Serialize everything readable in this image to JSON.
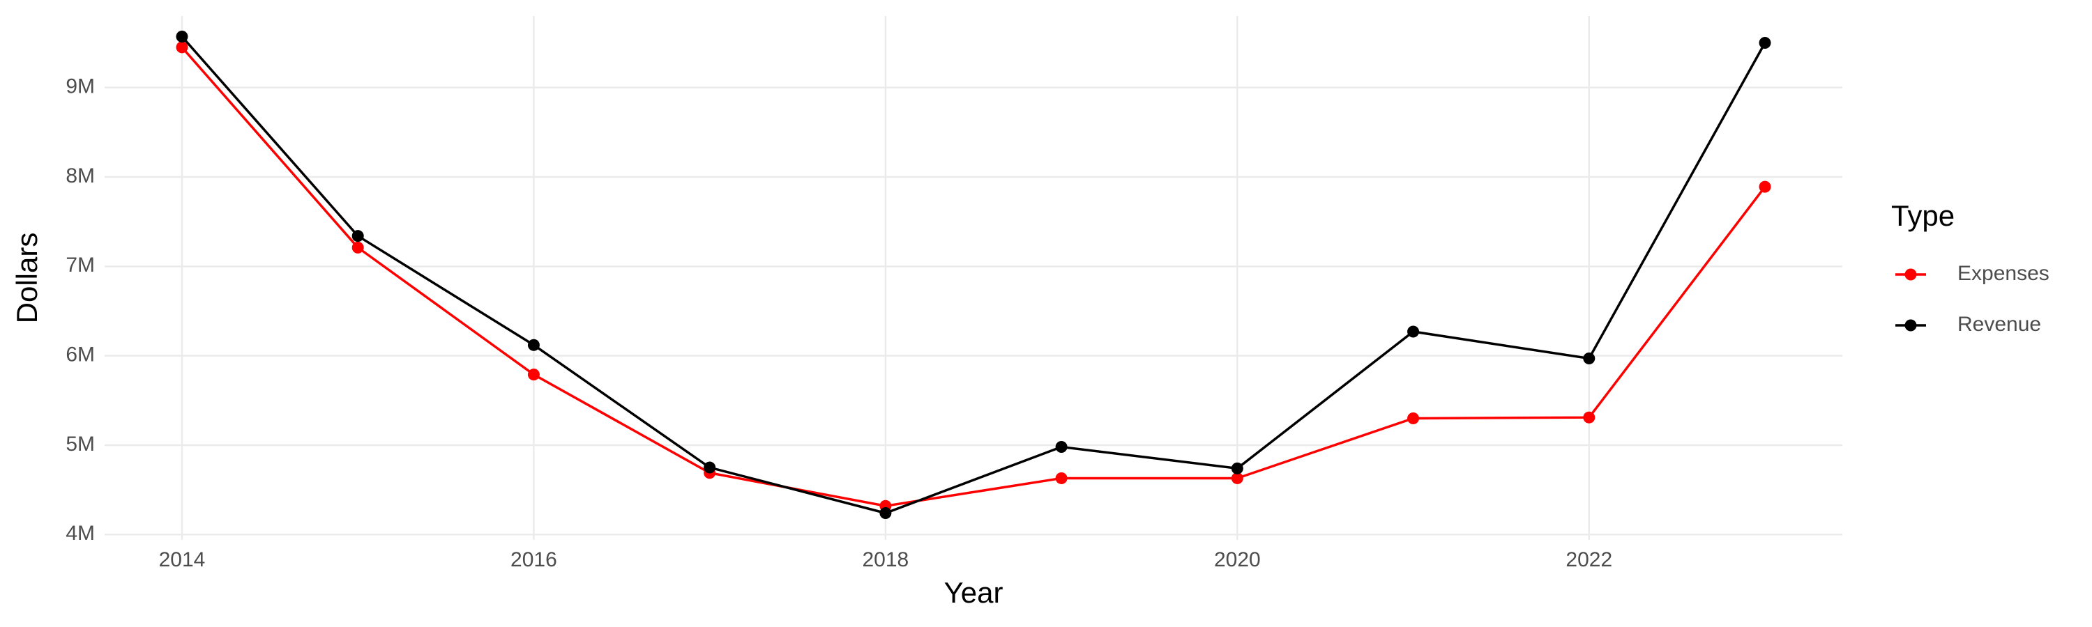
{
  "chart_data": {
    "type": "line",
    "x_label": "Year",
    "y_label": "Dollars",
    "legend_title": "Type",
    "legend_position": "right",
    "grid": true,
    "x": [
      2014,
      2015,
      2016,
      2017,
      2018,
      2019,
      2020,
      2021,
      2022,
      2023
    ],
    "series": [
      {
        "name": "Expenses",
        "color": "#ff0000",
        "values": [
          9450000,
          7210000,
          5790000,
          4690000,
          4320000,
          4630000,
          4630000,
          5300000,
          5310000,
          7890000
        ]
      },
      {
        "name": "Revenue",
        "color": "#000000",
        "values": [
          9570000,
          7340000,
          6120000,
          4750000,
          4240000,
          4980000,
          4740000,
          6270000,
          5970000,
          9500000
        ]
      }
    ],
    "xlim": [
      2013.56,
      2023.44
    ],
    "xticks": [
      2014,
      2016,
      2018,
      2020,
      2022
    ],
    "ylim": [
      3940000,
      9800000
    ],
    "yticks": [
      {
        "value": 4000000,
        "label": "4M"
      },
      {
        "value": 5000000,
        "label": "5M"
      },
      {
        "value": 6000000,
        "label": "6M"
      },
      {
        "value": 7000000,
        "label": "7M"
      },
      {
        "value": 8000000,
        "label": "8M"
      },
      {
        "value": 9000000,
        "label": "9M"
      }
    ]
  }
}
